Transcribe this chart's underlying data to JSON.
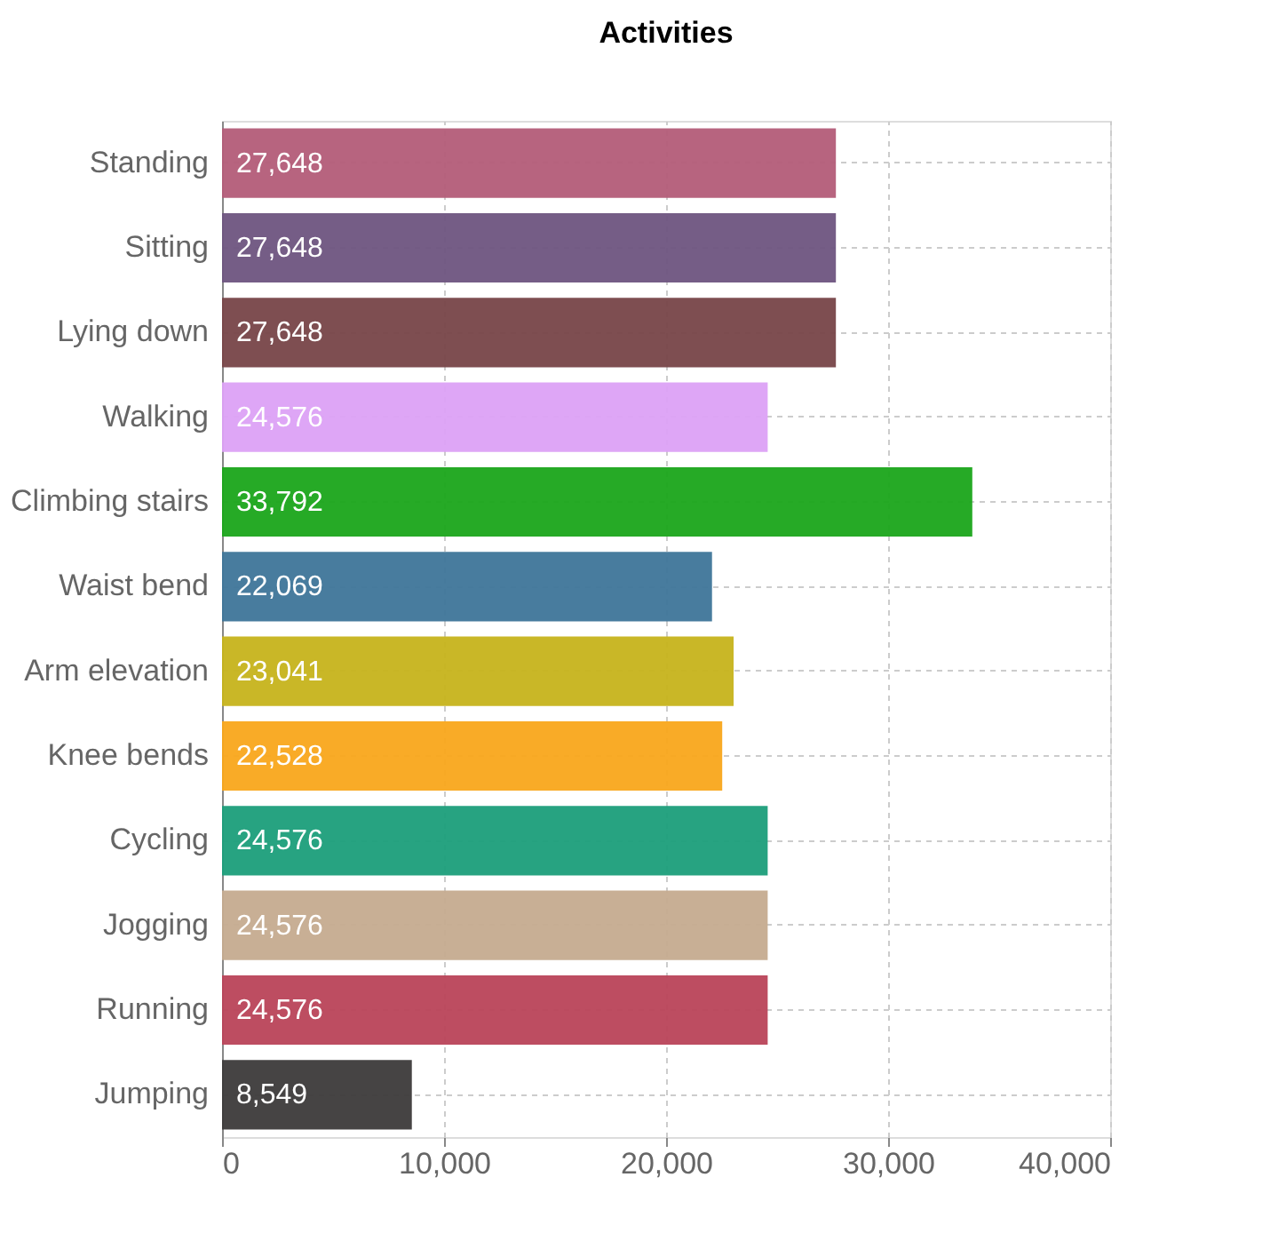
{
  "chart_data": {
    "type": "bar",
    "orientation": "horizontal",
    "title": "Activities",
    "categories": [
      "Standing",
      "Sitting",
      "Lying down",
      "Walking",
      "Climbing stairs",
      "Waist bend",
      "Arm elevation",
      "Knee bends",
      "Cycling",
      "Jogging",
      "Running",
      "Jumping"
    ],
    "values": [
      27648,
      27648,
      27648,
      24576,
      33792,
      22069,
      23041,
      22528,
      24576,
      24576,
      24576,
      8549
    ],
    "value_labels": [
      "27,648",
      "27,648",
      "27,648",
      "24,576",
      "33,792",
      "22,069",
      "23,041",
      "22,528",
      "24,576",
      "24,576",
      "24,576",
      "8,549"
    ],
    "colors": [
      "#b35c78",
      "#6e5480",
      "#774448",
      "#dca1f5",
      "#1aa51a",
      "#3e7599",
      "#c6b31b",
      "#f9a61b",
      "#1b9e7a",
      "#c5ab8f",
      "#b94358",
      "#3c3a3a"
    ],
    "xlim": [
      0,
      40000
    ],
    "xticks": [
      0,
      {
        "value": 10000,
        "label": "10,000"
      },
      {
        "value": 20000,
        "label": "20,000"
      },
      {
        "value": 30000,
        "label": "30,000"
      },
      {
        "value": 40000,
        "label": "40,000"
      }
    ],
    "grid": true
  }
}
